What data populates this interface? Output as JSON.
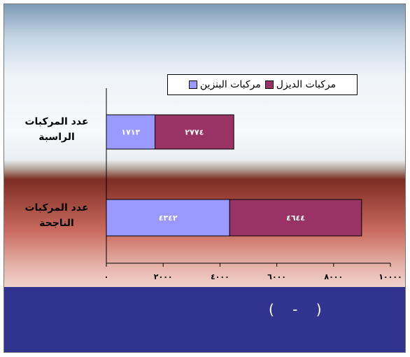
{
  "chart_data": {
    "type": "bar",
    "orientation": "horizontal",
    "stacked": true,
    "categories": [
      "عدد المركبات الناجحة",
      "عدد المركبات الراسبة"
    ],
    "series": [
      {
        "name": "مركبات البنزين",
        "values": [
          4342,
          1713
        ],
        "value_labels": [
          "٤٣٤٢",
          "١٧١٣"
        ],
        "color": "#9999ff"
      },
      {
        "name": "مركبات الديزل",
        "values": [
          4644,
          2774
        ],
        "value_labels": [
          "٤٦٤٤",
          "٢٧٧٤"
        ],
        "color": "#993366"
      }
    ],
    "xlim": [
      0,
      10000
    ],
    "x_ticks": [
      0,
      2000,
      4000,
      6000,
      8000,
      10000
    ],
    "x_tick_labels": [
      "٠",
      "٢٠٠٠",
      "٤٠٠٠",
      "٦٠٠٠",
      "٨٠٠٠",
      "١٠٠٠٠"
    ],
    "legend_position": "top-right",
    "grid": false
  },
  "labels": {
    "cat_failed": "عدد المركبات الراسبة",
    "cat_passed": "عدد المركبات الناجحة",
    "legend_diesel": "مركبات الديزل",
    "legend_petrol": "مركبات البنزين"
  },
  "footer": {
    "text": "( - )"
  }
}
